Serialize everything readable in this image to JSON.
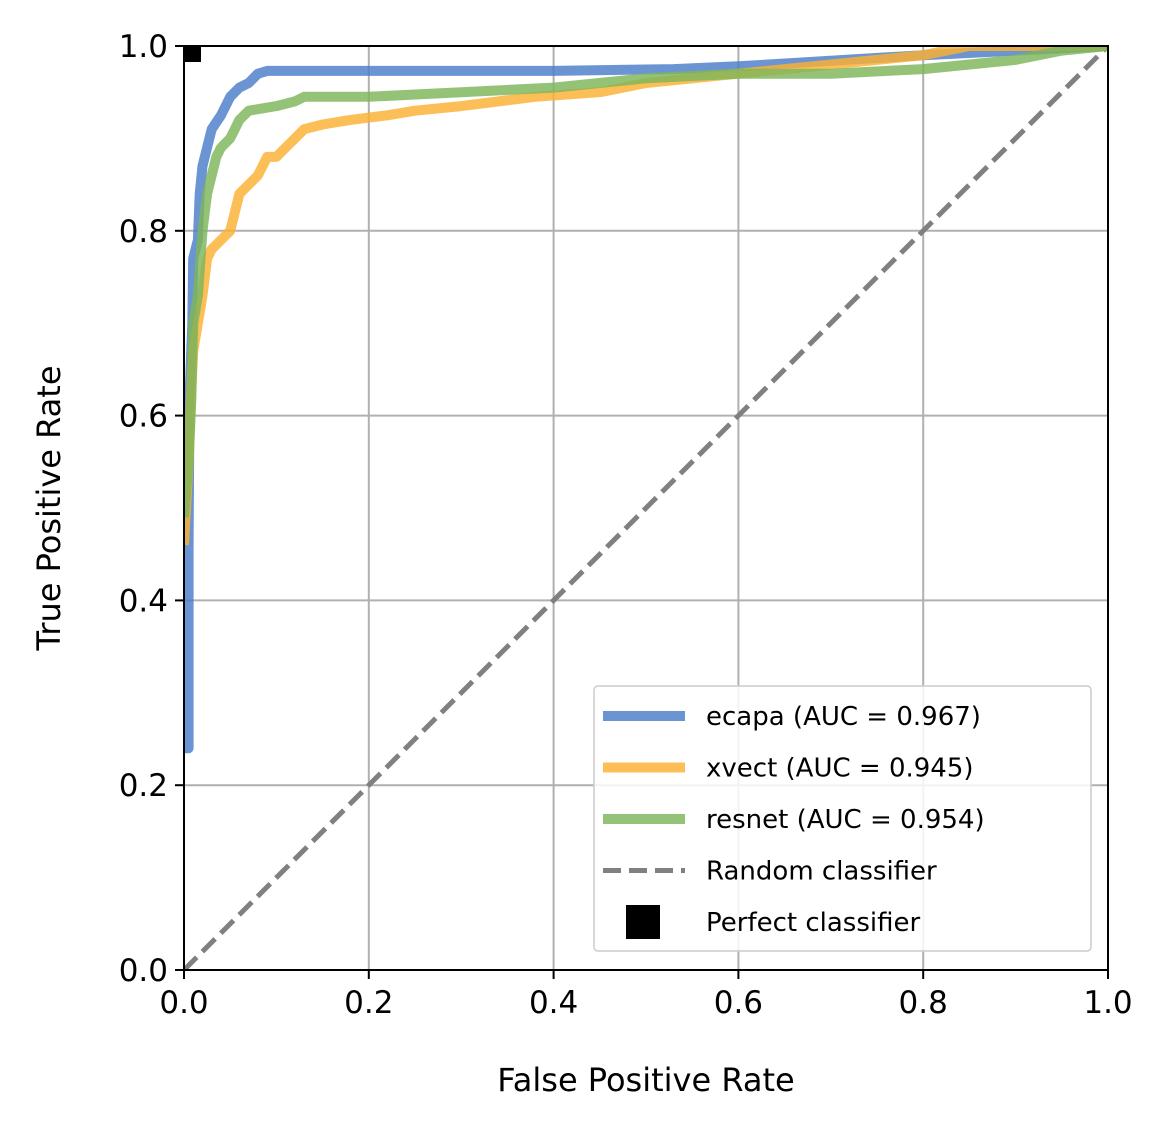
{
  "chart_data": {
    "type": "line",
    "title": "",
    "xlabel": "False Positive Rate",
    "ylabel": "True Positive Rate",
    "xlim": [
      0.0,
      1.0
    ],
    "ylim": [
      0.0,
      1.0
    ],
    "grid": true,
    "legend_position": "bottom-right",
    "x_ticks": [
      "0.0",
      "0.2",
      "0.4",
      "0.6",
      "0.8",
      "1.0"
    ],
    "y_ticks": [
      "0.0",
      "0.2",
      "0.4",
      "0.6",
      "0.8",
      "1.0"
    ],
    "series": [
      {
        "name": "ecapa (AUC = 0.967)",
        "color": "#4a7cc9",
        "points": [
          [
            0.0,
            0.24
          ],
          [
            0.005,
            0.24
          ],
          [
            0.005,
            0.46
          ],
          [
            0.006,
            0.62
          ],
          [
            0.009,
            0.7
          ],
          [
            0.01,
            0.77
          ],
          [
            0.015,
            0.79
          ],
          [
            0.017,
            0.84
          ],
          [
            0.02,
            0.87
          ],
          [
            0.025,
            0.89
          ],
          [
            0.03,
            0.91
          ],
          [
            0.04,
            0.925
          ],
          [
            0.05,
            0.945
          ],
          [
            0.06,
            0.955
          ],
          [
            0.07,
            0.96
          ],
          [
            0.08,
            0.97
          ],
          [
            0.09,
            0.973
          ],
          [
            0.2,
            0.973
          ],
          [
            0.4,
            0.973
          ],
          [
            0.53,
            0.975
          ],
          [
            0.6,
            0.978
          ],
          [
            0.8,
            0.99
          ],
          [
            0.9,
            0.995
          ],
          [
            1.0,
            1.0
          ]
        ]
      },
      {
        "name": "xvect (AUC = 0.945)",
        "color": "#fbb031",
        "points": [
          [
            0.0,
            0.46
          ],
          [
            0.005,
            0.55
          ],
          [
            0.008,
            0.63
          ],
          [
            0.01,
            0.67
          ],
          [
            0.015,
            0.7
          ],
          [
            0.02,
            0.73
          ],
          [
            0.025,
            0.77
          ],
          [
            0.03,
            0.78
          ],
          [
            0.04,
            0.79
          ],
          [
            0.05,
            0.8
          ],
          [
            0.055,
            0.82
          ],
          [
            0.06,
            0.84
          ],
          [
            0.07,
            0.85
          ],
          [
            0.08,
            0.86
          ],
          [
            0.09,
            0.88
          ],
          [
            0.1,
            0.88
          ],
          [
            0.11,
            0.89
          ],
          [
            0.12,
            0.9
          ],
          [
            0.13,
            0.91
          ],
          [
            0.15,
            0.915
          ],
          [
            0.18,
            0.92
          ],
          [
            0.22,
            0.925
          ],
          [
            0.25,
            0.93
          ],
          [
            0.3,
            0.935
          ],
          [
            0.38,
            0.945
          ],
          [
            0.45,
            0.95
          ],
          [
            0.5,
            0.96
          ],
          [
            0.6,
            0.97
          ],
          [
            0.7,
            0.98
          ],
          [
            0.8,
            0.99
          ],
          [
            0.85,
            1.0
          ],
          [
            1.0,
            1.0
          ]
        ]
      },
      {
        "name": "resnet (AUC = 0.954)",
        "color": "#7cb65a",
        "points": [
          [
            0.0,
            0.49
          ],
          [
            0.005,
            0.55
          ],
          [
            0.008,
            0.62
          ],
          [
            0.01,
            0.7
          ],
          [
            0.015,
            0.73
          ],
          [
            0.02,
            0.8
          ],
          [
            0.025,
            0.84
          ],
          [
            0.03,
            0.86
          ],
          [
            0.035,
            0.88
          ],
          [
            0.04,
            0.89
          ],
          [
            0.05,
            0.9
          ],
          [
            0.06,
            0.92
          ],
          [
            0.07,
            0.93
          ],
          [
            0.1,
            0.935
          ],
          [
            0.12,
            0.94
          ],
          [
            0.13,
            0.945
          ],
          [
            0.2,
            0.945
          ],
          [
            0.3,
            0.95
          ],
          [
            0.4,
            0.955
          ],
          [
            0.5,
            0.965
          ],
          [
            0.6,
            0.97
          ],
          [
            0.7,
            0.97
          ],
          [
            0.8,
            0.975
          ],
          [
            0.9,
            0.985
          ],
          [
            0.95,
            0.995
          ],
          [
            1.0,
            1.0
          ]
        ]
      }
    ],
    "reference_line": {
      "name": "Random classifier",
      "color": "#808080",
      "style": "dashed",
      "points": [
        [
          0.0,
          0.0
        ],
        [
          1.0,
          1.0
        ]
      ]
    },
    "marker": {
      "name": "Perfect classifier",
      "color": "#000000",
      "shape": "square",
      "x": 0.0,
      "y": 1.0
    }
  }
}
